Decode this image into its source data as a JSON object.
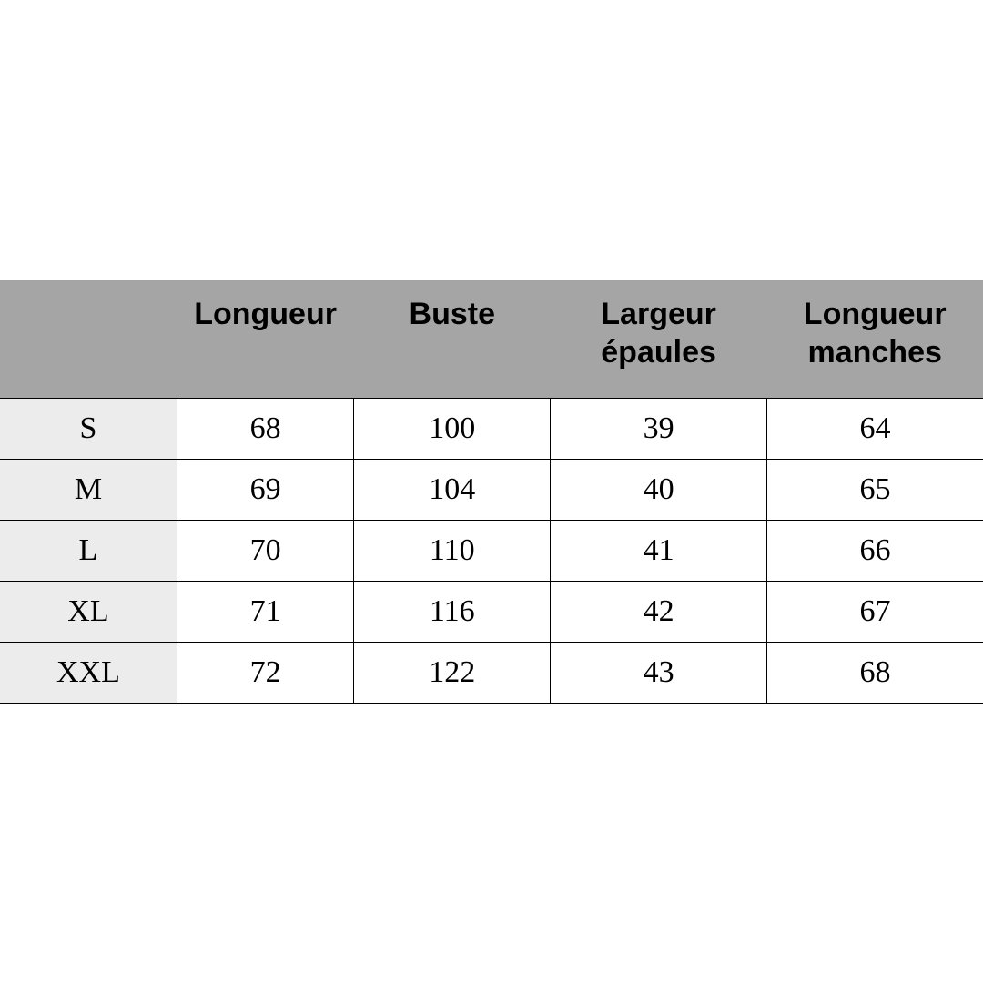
{
  "table": {
    "type": "table",
    "header_bg": "#a5a5a5",
    "size_col_bg": "#ececec",
    "cell_bg": "#ffffff",
    "border_color": "#000000",
    "header_font": "Arial",
    "body_font": "Georgia",
    "header_fontsize": 34,
    "body_fontsize": 34,
    "text_color": "#000000",
    "columns": [
      "",
      "Longueur",
      "Buste",
      "Largeur épaules",
      "Longueur manches"
    ],
    "col_widths_pct": [
      18,
      18,
      20,
      22,
      22
    ],
    "rows": [
      [
        "S",
        "68",
        "100",
        "39",
        "64"
      ],
      [
        "M",
        "69",
        "104",
        "40",
        "65"
      ],
      [
        "L",
        "70",
        "110",
        "41",
        "66"
      ],
      [
        "XL",
        "71",
        "116",
        "42",
        "67"
      ],
      [
        "XXL",
        "72",
        "122",
        "43",
        "68"
      ]
    ]
  }
}
